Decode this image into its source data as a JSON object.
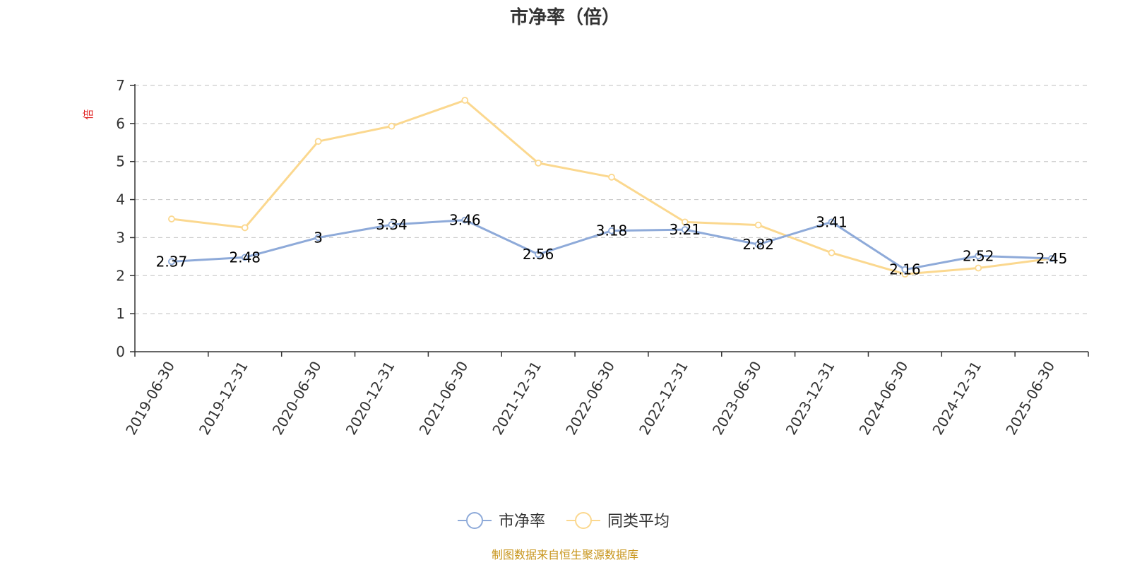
{
  "chart_data": {
    "type": "line",
    "title": "市净率（倍）",
    "ylabel": "倍",
    "xlabel": "",
    "ylim": [
      0,
      7
    ],
    "yticks": [
      0,
      1,
      2,
      3,
      4,
      5,
      6,
      7
    ],
    "grid": true,
    "legend_position": "bottom",
    "categories": [
      "2019-06-30",
      "2019-12-31",
      "2020-06-30",
      "2020-12-31",
      "2021-06-30",
      "2021-12-31",
      "2022-06-30",
      "2022-12-31",
      "2023-06-30",
      "2023-12-31",
      "2024-06-30",
      "2024-12-31",
      "2025-06-30"
    ],
    "series": [
      {
        "name": "市净率",
        "color": "#8eaad9",
        "values": [
          2.37,
          2.48,
          3,
          3.34,
          3.46,
          2.56,
          3.18,
          3.21,
          2.82,
          3.41,
          2.16,
          2.52,
          2.45
        ],
        "labels": [
          "2.37",
          "2.48",
          "3",
          "3.34",
          "3.46",
          "2.56",
          "3.18",
          "3.21",
          "2.82",
          "3.41",
          "2.16",
          "2.52",
          "2.45"
        ]
      },
      {
        "name": "同类平均",
        "color": "#fbd88f",
        "values": [
          3.49,
          3.26,
          5.53,
          5.93,
          6.61,
          4.96,
          4.59,
          3.41,
          3.33,
          2.6,
          2.04,
          2.2,
          2.45
        ]
      }
    ],
    "source_note": "制图数据来自恒生聚源数据库",
    "colors": {
      "axis": "#333333",
      "grid": "#cccccc",
      "unit": "#e02020",
      "source": "#c8961e"
    }
  }
}
